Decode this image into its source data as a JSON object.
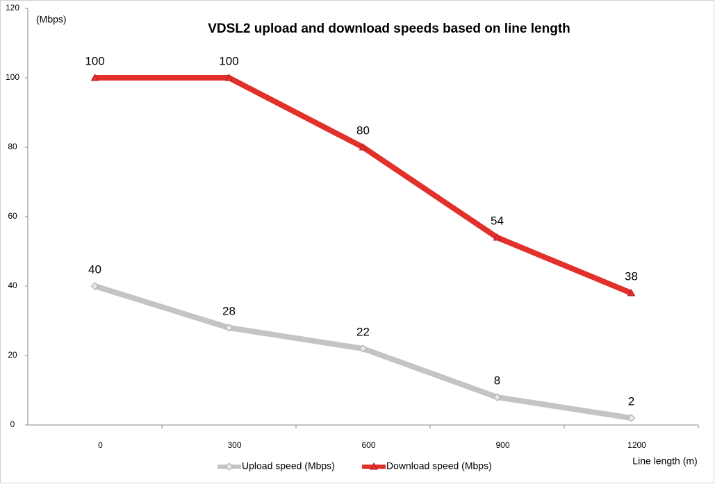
{
  "chart_data": {
    "type": "line",
    "title": "VDSL2 upload and download speeds based on line length",
    "y_label": "(Mbps)",
    "x_label": "Line length (m)",
    "categories": [
      "0",
      "300",
      "600",
      "900",
      "1200"
    ],
    "series": [
      {
        "name": "Upload speed (Mbps)",
        "color": "#c4c4c4",
        "marker": "diamond",
        "values": [
          40,
          28,
          22,
          8,
          2
        ]
      },
      {
        "name": "Download speed (Mbps)",
        "color": "#e2302a",
        "marker": "triangle",
        "values": [
          100,
          100,
          80,
          54,
          38
        ]
      }
    ],
    "ylim": [
      0,
      120
    ],
    "yticks": [
      0,
      20,
      40,
      60,
      80,
      100,
      120
    ],
    "legend": "bottom"
  }
}
